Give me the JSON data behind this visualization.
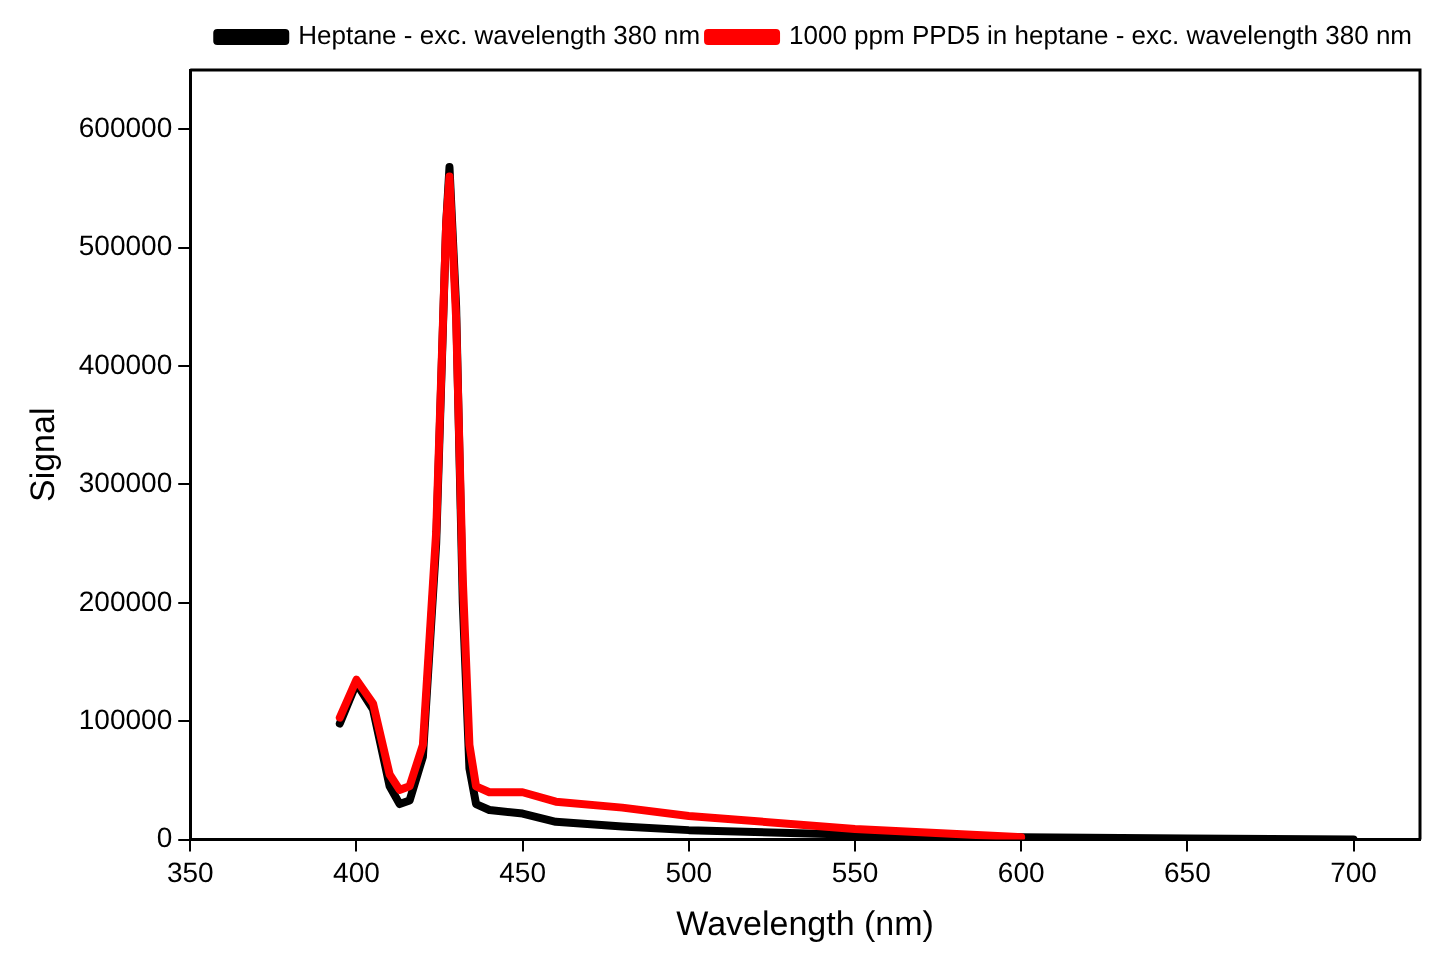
{
  "chart_data": {
    "type": "line",
    "xlabel": "Wavelength (nm)",
    "ylabel": "Signal",
    "xlim": [
      350,
      720
    ],
    "xticks": [
      350,
      400,
      450,
      500,
      550,
      600,
      650,
      700
    ],
    "ylim": [
      0,
      650000
    ],
    "yticks": [
      0,
      100000,
      200000,
      300000,
      400000,
      500000,
      600000
    ],
    "grid": false,
    "legend": "top right",
    "marker": "none",
    "line_style": "solid",
    "series": [
      {
        "name": "Heptane - exc. wavelength 380 nm",
        "color": "#000000",
        "x": [
          395,
          400,
          405,
          410,
          413,
          416,
          420,
          424,
          427,
          428,
          430,
          432,
          434,
          436,
          440,
          450,
          460,
          480,
          500,
          550,
          600,
          650,
          700
        ],
        "values": [
          98000,
          132000,
          110000,
          45000,
          30000,
          33000,
          70000,
          250000,
          520000,
          568000,
          450000,
          200000,
          60000,
          30000,
          25000,
          22000,
          15000,
          11000,
          8000,
          4000,
          2000,
          1000,
          0
        ]
      },
      {
        "name": "1000 ppm PPD5 in heptane - exc. wavelength 380 nm",
        "color": "#ff0000",
        "x": [
          395,
          400,
          405,
          410,
          413,
          416,
          420,
          424,
          427,
          428,
          430,
          432,
          434,
          436,
          440,
          450,
          460,
          480,
          500,
          550,
          600
        ],
        "values": [
          103000,
          135000,
          115000,
          55000,
          42000,
          45000,
          80000,
          260000,
          520000,
          560000,
          440000,
          220000,
          80000,
          45000,
          40000,
          40000,
          32000,
          27000,
          20000,
          9000,
          2000
        ]
      }
    ]
  }
}
